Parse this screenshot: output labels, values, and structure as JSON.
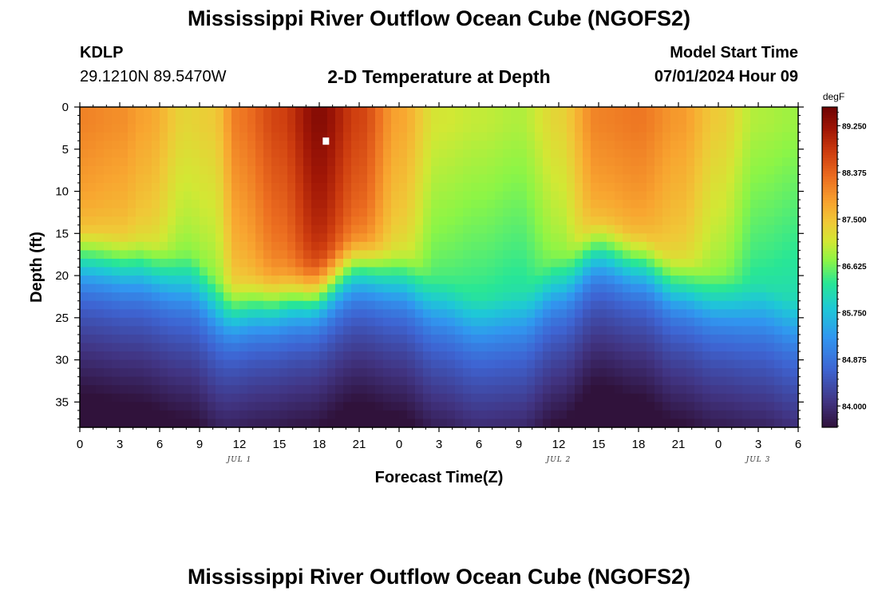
{
  "header": {
    "title": "Mississippi River Outflow Ocean Cube (NGOFS2)",
    "station_id": "KDLP",
    "coords": "29.1210N  89.5470W",
    "subtitle": "2-D Temperature at Depth",
    "model_start_label": "Model Start Time",
    "model_start_value": "07/01/2024 Hour 09"
  },
  "footer": {
    "title": "Mississippi River Outflow Ocean Cube (NGOFS2)"
  },
  "chart_data": {
    "type": "heatmap",
    "title": "2-D Temperature at Depth",
    "xlabel": "Forecast Time(Z)",
    "ylabel": "Depth (ft)",
    "xlim": [
      0,
      54
    ],
    "ylim": [
      38,
      0
    ],
    "x_ticks": [
      "0",
      "3",
      "6",
      "9",
      "12",
      "15",
      "18",
      "21",
      "0",
      "3",
      "6",
      "9",
      "12",
      "15",
      "18",
      "21",
      "0",
      "3",
      "6"
    ],
    "y_ticks": [
      "0",
      "5",
      "10",
      "15",
      "20",
      "25",
      "30",
      "35"
    ],
    "day_labels": [
      {
        "label": "JUL 1",
        "hour": 12
      },
      {
        "label": "JUL 2",
        "hour": 36
      },
      {
        "label": "JUL 3",
        "hour": 51
      }
    ],
    "colorbar": {
      "unit": "degF",
      "min": 83.6,
      "max": 89.6,
      "ticks": [
        "89.250",
        "88.375",
        "87.500",
        "86.625",
        "85.750",
        "84.875",
        "84.000"
      ],
      "tick_values": [
        89.25,
        88.375,
        87.5,
        86.625,
        85.75,
        84.875,
        84.0
      ]
    },
    "thermocline_depth_ft": [
      {
        "hour": 0,
        "depth": 18.5
      },
      {
        "hour": 4,
        "depth": 19.5
      },
      {
        "hour": 8,
        "depth": 21.5
      },
      {
        "hour": 11,
        "depth": 25.0
      },
      {
        "hour": 14,
        "depth": 24.0
      },
      {
        "hour": 17,
        "depth": 23.0
      },
      {
        "hour": 21,
        "depth": 19.5
      },
      {
        "hour": 24,
        "depth": 21.0
      },
      {
        "hour": 27,
        "depth": 24.5
      },
      {
        "hour": 30,
        "depth": 26.5
      },
      {
        "hour": 33,
        "depth": 26.0
      },
      {
        "hour": 36,
        "depth": 22.0
      },
      {
        "hour": 39,
        "depth": 17.5
      },
      {
        "hour": 42,
        "depth": 19.0
      },
      {
        "hour": 45,
        "depth": 22.0
      },
      {
        "hour": 48,
        "depth": 24.0
      },
      {
        "hour": 51,
        "depth": 25.0
      },
      {
        "hour": 54,
        "depth": 27.0
      }
    ],
    "surface_temp_degF": [
      {
        "hour": 0,
        "value": 88.1
      },
      {
        "hour": 3,
        "value": 88.0
      },
      {
        "hour": 5,
        "value": 87.8
      },
      {
        "hour": 8,
        "value": 87.3
      },
      {
        "hour": 10,
        "value": 87.4
      },
      {
        "hour": 12,
        "value": 88.2
      },
      {
        "hour": 15,
        "value": 88.7
      },
      {
        "hour": 18,
        "value": 89.4
      },
      {
        "hour": 21,
        "value": 88.7
      },
      {
        "hour": 24,
        "value": 87.8
      },
      {
        "hour": 27,
        "value": 87.1
      },
      {
        "hour": 30,
        "value": 87.0
      },
      {
        "hour": 33,
        "value": 86.9
      },
      {
        "hour": 36,
        "value": 87.3
      },
      {
        "hour": 39,
        "value": 88.1
      },
      {
        "hour": 42,
        "value": 88.2
      },
      {
        "hour": 45,
        "value": 87.9
      },
      {
        "hour": 48,
        "value": 87.4
      },
      {
        "hour": 51,
        "value": 86.9
      },
      {
        "hour": 54,
        "value": 86.8
      }
    ],
    "marker": {
      "hour": 18.5,
      "depth": 4
    }
  }
}
